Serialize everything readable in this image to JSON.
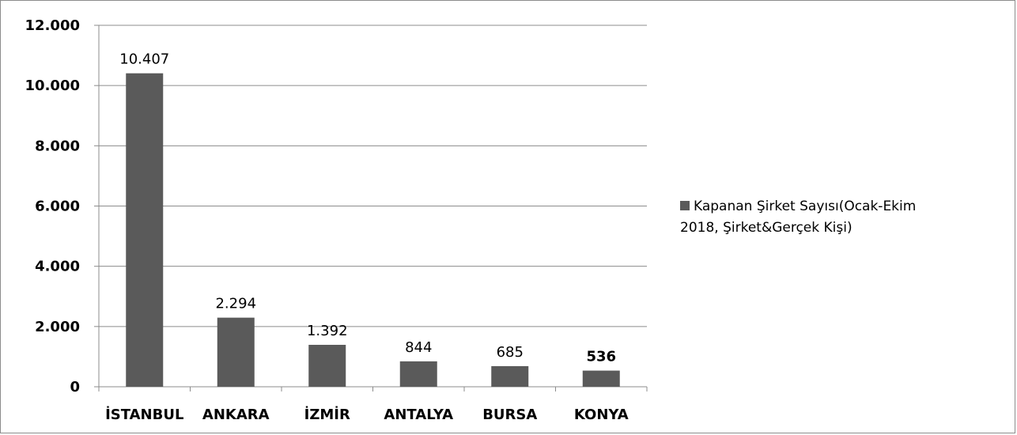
{
  "chart_data": {
    "type": "bar",
    "categories": [
      "İSTANBUL",
      "ANKARA",
      "İZMİR",
      "ANTALYA",
      "BURSA",
      "KONYA"
    ],
    "series": [
      {
        "name": "Kapanan Şirket Sayısı(Ocak-Ekim 2018, Şirket&Gerçek Kişi)",
        "values": [
          10407,
          2294,
          1392,
          844,
          685,
          536
        ],
        "data_labels": [
          "10.407",
          "2.294",
          "1.392",
          "844",
          "685",
          "536"
        ],
        "bold_labels": [
          false,
          false,
          false,
          false,
          false,
          true
        ],
        "color": "#5a5a5a"
      }
    ],
    "y_ticks": [
      0,
      2000,
      4000,
      6000,
      8000,
      10000,
      12000
    ],
    "y_tick_labels": [
      "0",
      "2.000",
      "4.000",
      "6.000",
      "8.000",
      "10.000",
      "12.000"
    ],
    "ylim": [
      0,
      12000
    ],
    "grid": true,
    "legend_position": "right"
  },
  "legend": {
    "line1": "Kapanan Şirket Sayısı(Ocak-Ekim",
    "line2": "2018, Şirket&Gerçek Kişi)"
  },
  "colors": {
    "bar": "#5a5a5a",
    "grid": "#8c8c8c",
    "axis": "#8c8c8c"
  }
}
